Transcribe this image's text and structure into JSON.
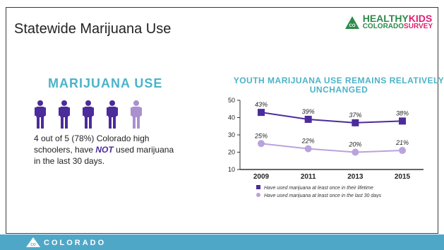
{
  "slide": {
    "title": "Statewide Marijuana Use"
  },
  "logo": {
    "line1_a": "HEALTHY",
    "line1_b": "KIDS",
    "line2_a": "COLORADO",
    "line2_b": "SURVEY",
    "badge": "CO"
  },
  "left_panel": {
    "heading": "MARIJUANA USE",
    "people_total": 5,
    "people_highlighted": 4,
    "text_before": "4 out of 5 (78%) Colorado high schoolers, have ",
    "text_emph": "NOT",
    "text_after": " used marijuana in the last 30 days.",
    "colors": {
      "main": "#4b2c9a",
      "light": "#a991cf"
    }
  },
  "chart_data": {
    "type": "line",
    "title": "YOUTH MARIJUANA USE REMAINS RELATIVELY UNCHANGED",
    "categories": [
      "2009",
      "2011",
      "2013",
      "2015"
    ],
    "ylim": [
      10,
      50
    ],
    "yticks": [
      "10",
      "20",
      "30",
      "40",
      "50"
    ],
    "series": [
      {
        "name": "Have used marijuana at least once in their lifetime",
        "values": [
          43,
          39,
          37,
          38
        ],
        "labels": [
          "43%",
          "39%",
          "37%",
          "38%"
        ],
        "color": "#4b2c9a",
        "marker": "square"
      },
      {
        "name": "Have used marijuana at least once in the last 30 days",
        "values": [
          25,
          22,
          20,
          21
        ],
        "labels": [
          "25%",
          "22%",
          "20%",
          "21%"
        ],
        "color": "#b9a3dc",
        "marker": "circle"
      }
    ]
  },
  "footer": {
    "text": "COLORADO",
    "badge": "CO",
    "color": "#4fa7c8"
  }
}
